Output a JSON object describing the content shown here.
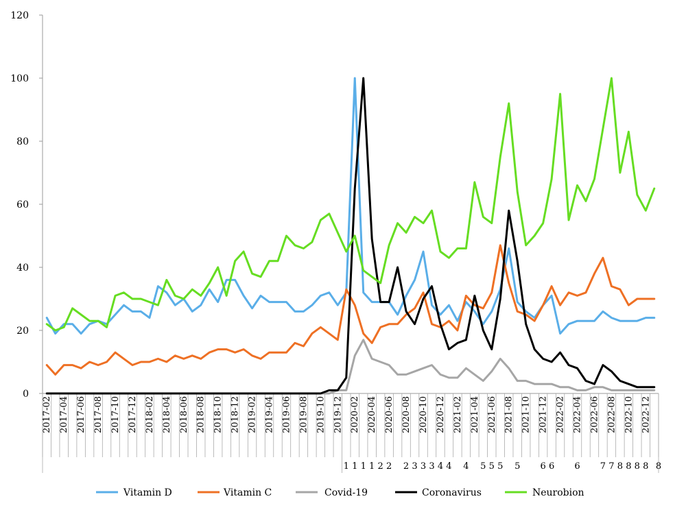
{
  "chart_data": {
    "type": "line",
    "ylim": [
      0,
      120
    ],
    "yticks": [
      0,
      20,
      40,
      60,
      80,
      100,
      120
    ],
    "grid": false,
    "legend_position": "bottom",
    "x": [
      "2017-02",
      "2017-03",
      "2017-04",
      "2017-05",
      "2017-06",
      "2017-07",
      "2017-08",
      "2017-09",
      "2017-10",
      "2017-11",
      "2017-12",
      "2018-01",
      "2018-02",
      "2018-03",
      "2018-04",
      "2018-05",
      "2018-06",
      "2018-07",
      "2018-08",
      "2018-09",
      "2018-10",
      "2018-11",
      "2018-12",
      "2019-01",
      "2019-02",
      "2019-03",
      "2019-04",
      "2019-05",
      "2019-06",
      "2019-07",
      "2019-08",
      "2019-09",
      "2019-10",
      "2019-11",
      "2019-12",
      "2020-01",
      "2020-02",
      "2020-03",
      "2020-04",
      "2020-05",
      "2020-06",
      "2020-07",
      "2020-08",
      "2020-09",
      "2020-10",
      "2020-11",
      "2020-12",
      "2021-01",
      "2021-02",
      "2021-03",
      "2021-04",
      "2021-05",
      "2021-06",
      "2021-07",
      "2021-08",
      "2021-09",
      "2021-10",
      "2021-11",
      "2021-12",
      "2022-01",
      "2022-02",
      "2022-03",
      "2022-04",
      "2022-05",
      "2022-06",
      "2022-07",
      "2022-08",
      "2022-09",
      "2022-10",
      "2022-11",
      "2022-12",
      "2023-01"
    ],
    "x_tick_labels": [
      "2017-02",
      "2017-04",
      "2017-06",
      "2017-08",
      "2017-10",
      "2017-12",
      "2018-02",
      "2018-04",
      "2018-06",
      "2018-08",
      "2018-10",
      "2018-12",
      "2019-02",
      "2019-04",
      "2019-06",
      "2019-08",
      "2019-10",
      "2019-12",
      "2020-02",
      "2020-04",
      "2020-06",
      "2020-08",
      "2020-10",
      "2020-12",
      "2021-02",
      "2021-04",
      "2021-06",
      "2021-08",
      "2021-10",
      "2021-12",
      "2022-02",
      "2022-04",
      "2022-06",
      "2022-08",
      "2022-10",
      "2022-12"
    ],
    "group_labels": [
      {
        "text": "1",
        "index": 35
      },
      {
        "text": "1",
        "index": 36
      },
      {
        "text": "1",
        "index": 37
      },
      {
        "text": "1",
        "index": 38
      },
      {
        "text": "2",
        "index": 39
      },
      {
        "text": "2",
        "index": 40
      },
      {
        "text": "2",
        "index": 42
      },
      {
        "text": "3",
        "index": 43
      },
      {
        "text": "3",
        "index": 44
      },
      {
        "text": "3",
        "index": 45
      },
      {
        "text": "4",
        "index": 46
      },
      {
        "text": "4",
        "index": 47
      },
      {
        "text": "4",
        "index": 49
      },
      {
        "text": "5",
        "index": 51
      },
      {
        "text": "5",
        "index": 52
      },
      {
        "text": "5",
        "index": 53
      },
      {
        "text": "5",
        "index": 55
      },
      {
        "text": "6",
        "index": 58
      },
      {
        "text": "6",
        "index": 59
      },
      {
        "text": "6",
        "index": 62
      },
      {
        "text": "7",
        "index": 65
      },
      {
        "text": "7",
        "index": 66
      },
      {
        "text": "8",
        "index": 67
      },
      {
        "text": "8",
        "index": 68
      },
      {
        "text": "8",
        "index": 69
      },
      {
        "text": "8",
        "index": 70
      },
      {
        "text": "8",
        "index": 71.5
      }
    ],
    "series": [
      {
        "name": "Vitamin D",
        "color": "#5aaee8",
        "values": [
          24,
          19,
          22,
          22,
          19,
          22,
          23,
          22,
          25,
          28,
          26,
          26,
          24,
          34,
          32,
          28,
          30,
          26,
          28,
          33,
          29,
          36,
          36,
          31,
          27,
          31,
          29,
          29,
          29,
          26,
          26,
          28,
          31,
          32,
          28,
          32,
          100,
          32,
          29,
          29,
          29,
          25,
          31,
          36,
          45,
          28,
          25,
          28,
          23,
          29,
          26,
          22,
          26,
          33,
          46,
          29,
          26,
          24,
          28,
          31,
          19,
          22,
          23,
          23,
          23,
          26,
          24,
          23,
          23,
          23,
          24,
          24
        ]
      },
      {
        "name": "Vitamin C",
        "color": "#ee7024",
        "values": [
          9,
          6,
          9,
          9,
          8,
          10,
          9,
          10,
          13,
          11,
          9,
          10,
          10,
          11,
          10,
          12,
          11,
          12,
          11,
          13,
          14,
          14,
          13,
          14,
          12,
          11,
          13,
          13,
          13,
          16,
          15,
          19,
          21,
          19,
          17,
          33,
          28,
          19,
          16,
          21,
          22,
          22,
          25,
          27,
          32,
          22,
          21,
          23,
          20,
          31,
          28,
          27,
          32,
          47,
          35,
          26,
          25,
          23,
          28,
          34,
          28,
          32,
          31,
          32,
          38,
          43,
          34,
          33,
          28,
          30,
          30,
          30
        ]
      },
      {
        "name": "Covid-19",
        "color": "#a6a6a6",
        "values": [
          0,
          0,
          0,
          0,
          0,
          0,
          0,
          0,
          0,
          0,
          0,
          0,
          0,
          0,
          0,
          0,
          0,
          0,
          0,
          0,
          0,
          0,
          0,
          0,
          0,
          0,
          0,
          0,
          0,
          0,
          0,
          0,
          0,
          0,
          1,
          1,
          12,
          17,
          11,
          10,
          9,
          6,
          6,
          7,
          8,
          9,
          6,
          5,
          5,
          8,
          6,
          4,
          7,
          11,
          8,
          4,
          4,
          3,
          3,
          3,
          2,
          2,
          1,
          1,
          2,
          2,
          1,
          1,
          1,
          1,
          1,
          1
        ]
      },
      {
        "name": "Coronavirus",
        "color": "#000000",
        "values": [
          0,
          0,
          0,
          0,
          0,
          0,
          0,
          0,
          0,
          0,
          0,
          0,
          0,
          0,
          0,
          0,
          0,
          0,
          0,
          0,
          0,
          0,
          0,
          0,
          0,
          0,
          0,
          0,
          0,
          0,
          0,
          0,
          0,
          1,
          1,
          5,
          65,
          100,
          49,
          29,
          29,
          40,
          26,
          22,
          30,
          34,
          22,
          14,
          16,
          17,
          31,
          20,
          14,
          30,
          58,
          42,
          22,
          14,
          11,
          10,
          13,
          9,
          8,
          4,
          3,
          9,
          7,
          4,
          3,
          2,
          2,
          2
        ]
      },
      {
        "name": "Neurobion",
        "color": "#66dd22",
        "values": [
          22,
          20,
          21,
          27,
          25,
          23,
          23,
          21,
          31,
          32,
          30,
          30,
          29,
          28,
          36,
          31,
          30,
          33,
          31,
          35,
          40,
          31,
          42,
          45,
          38,
          37,
          42,
          42,
          50,
          47,
          46,
          48,
          55,
          57,
          51,
          45,
          50,
          39,
          37,
          35,
          47,
          54,
          51,
          56,
          54,
          58,
          45,
          43,
          46,
          46,
          67,
          56,
          54,
          75,
          92,
          64,
          47,
          50,
          54,
          68,
          95,
          55,
          66,
          61,
          68,
          84,
          100,
          70,
          83,
          63,
          58,
          65
        ]
      }
    ]
  }
}
